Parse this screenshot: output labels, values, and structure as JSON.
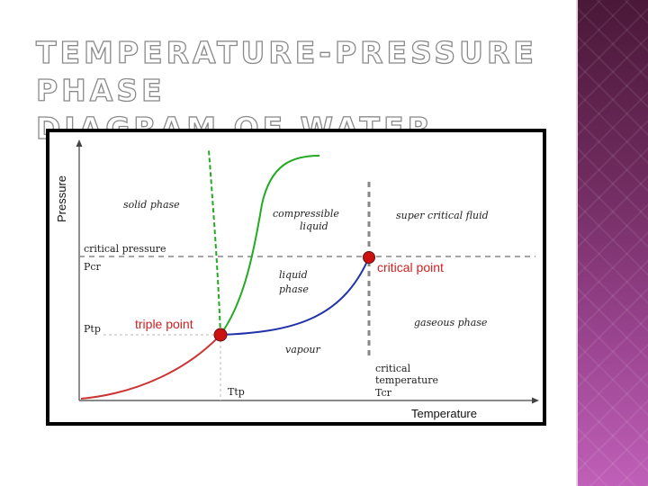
{
  "slide": {
    "title_line1": "TEMPERATURE-PRESSURE PHASE",
    "title_line2": "DIAGRAM OF WATER"
  },
  "diagram": {
    "axes": {
      "y_label": "Pressure",
      "x_label": "Temperature"
    },
    "regions": {
      "solid": "solid phase",
      "compressible_line1": "compressible",
      "compressible_line2": "liquid",
      "liquid_line1": "liquid",
      "liquid_line2": "phase",
      "supercritical": "super critical fluid",
      "gaseous": "gaseous phase",
      "vapour": "vapour"
    },
    "markers": {
      "critical_pressure": "critical pressure",
      "p_cr": "Pcr",
      "p_tp": "Ptp",
      "t_tp": "Ttp",
      "critical_temperature_line1": "critical",
      "critical_temperature_line2": "temperature",
      "t_cr": "Tcr"
    },
    "points": {
      "triple_point": "triple point",
      "critical_point": "critical point"
    },
    "colors": {
      "fusion_curve": "#22aa22",
      "vaporization_curve": "#2233aa",
      "sublimation_curve": "#cc3333",
      "point_fill": "#cc1111",
      "point_label": "#cc2222",
      "guide_line": "#888888"
    }
  }
}
